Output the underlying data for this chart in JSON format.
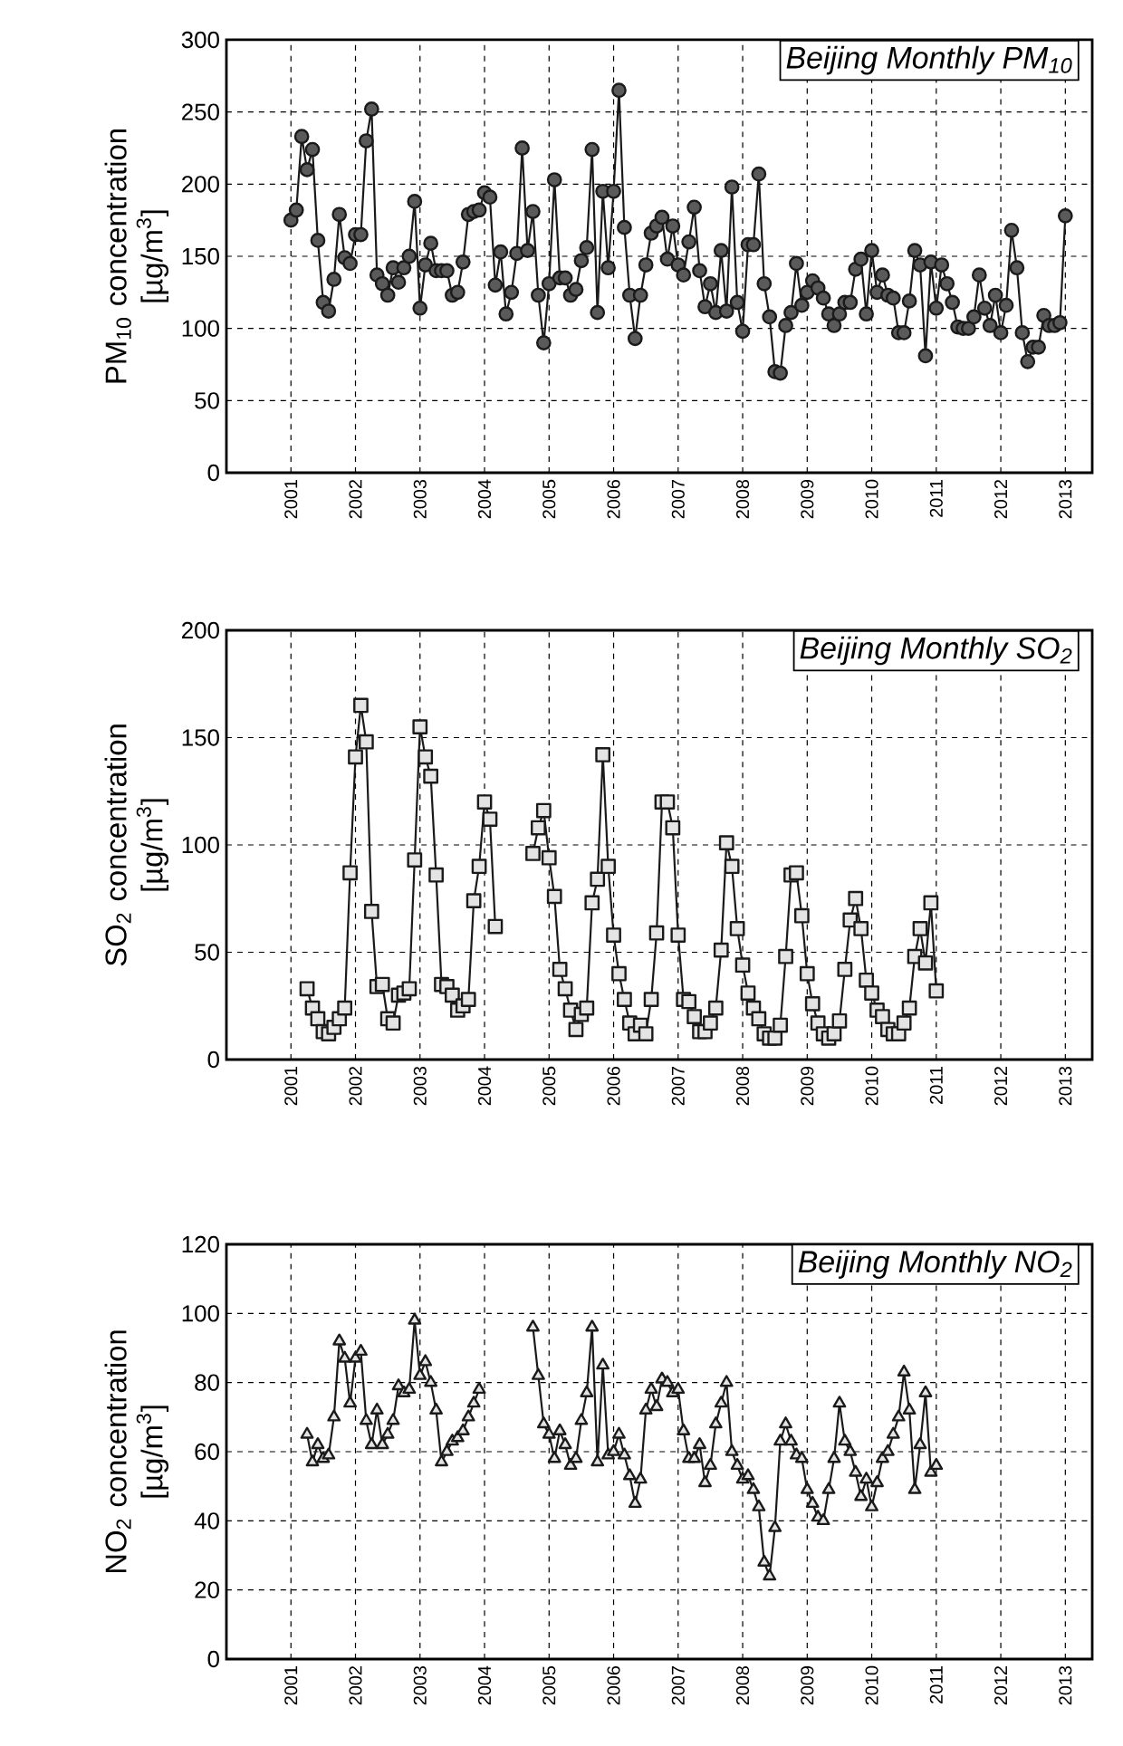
{
  "chart_data": [
    {
      "type": "line",
      "title": "Beijing Monthly PM$_{10}$",
      "ylabel": "PM$_{10}$ concentration [µg/m$^{3}$]",
      "marker": "circle",
      "grid": true,
      "xlim": [
        "2000-01",
        "2013-06"
      ],
      "ylim": [
        0,
        300
      ],
      "xticks": [
        "2001",
        "2002",
        "2003",
        "2004",
        "2005",
        "2006",
        "2007",
        "2008",
        "2009",
        "2010",
        "2011",
        "2012",
        "2013"
      ],
      "yticks": [
        0,
        50,
        100,
        150,
        200,
        250,
        300
      ],
      "x": [
        "2001-01",
        "2001-02",
        "2001-03",
        "2001-04",
        "2001-05",
        "2001-06",
        "2001-07",
        "2001-08",
        "2001-09",
        "2001-10",
        "2001-11",
        "2001-12",
        "2002-01",
        "2002-02",
        "2002-03",
        "2002-04",
        "2002-05",
        "2002-06",
        "2002-07",
        "2002-08",
        "2002-09",
        "2002-10",
        "2002-11",
        "2002-12",
        "2003-01",
        "2003-02",
        "2003-03",
        "2003-04",
        "2003-05",
        "2003-06",
        "2003-07",
        "2003-08",
        "2003-09",
        "2003-10",
        "2003-11",
        "2003-12",
        "2004-01",
        "2004-02",
        "2004-03",
        "2004-04",
        "2004-05",
        "2004-06",
        "2004-07",
        "2004-08",
        "2004-09",
        "2004-10",
        "2004-11",
        "2004-12",
        "2005-01",
        "2005-02",
        "2005-03",
        "2005-04",
        "2005-05",
        "2005-06",
        "2005-07",
        "2005-08",
        "2005-09",
        "2005-10",
        "2005-11",
        "2005-12",
        "2006-01",
        "2006-02",
        "2006-03",
        "2006-04",
        "2006-05",
        "2006-06",
        "2006-07",
        "2006-08",
        "2006-09",
        "2006-10",
        "2006-11",
        "2006-12",
        "2007-01",
        "2007-02",
        "2007-03",
        "2007-04",
        "2007-05",
        "2007-06",
        "2007-07",
        "2007-08",
        "2007-09",
        "2007-10",
        "2007-11",
        "2007-12",
        "2008-01",
        "2008-02",
        "2008-03",
        "2008-04",
        "2008-05",
        "2008-06",
        "2008-07",
        "2008-08",
        "2008-09",
        "2008-10",
        "2008-11",
        "2008-12",
        "2009-01",
        "2009-02",
        "2009-03",
        "2009-04",
        "2009-05",
        "2009-06",
        "2009-07",
        "2009-08",
        "2009-09",
        "2009-10",
        "2009-11",
        "2009-12",
        "2010-01",
        "2010-02",
        "2010-03",
        "2010-04",
        "2010-05",
        "2010-06",
        "2010-07",
        "2010-08",
        "2010-09",
        "2010-10",
        "2010-11",
        "2010-12",
        "2011-01",
        "2011-02",
        "2011-03",
        "2011-04",
        "2011-05",
        "2011-06",
        "2011-07",
        "2011-08",
        "2011-09",
        "2011-10",
        "2011-11",
        "2011-12",
        "2012-01",
        "2012-02",
        "2012-03",
        "2012-04",
        "2012-05",
        "2012-06",
        "2012-07",
        "2012-08",
        "2012-09",
        "2012-10",
        "2012-11",
        "2012-12",
        "2013-01"
      ],
      "series": [
        {
          "color": "#5a5a5a",
          "values": [
            175,
            182,
            233,
            210,
            224,
            161,
            118,
            112,
            134,
            179,
            149,
            145,
            165,
            165,
            230,
            252,
            137,
            131,
            123,
            142,
            132,
            142,
            150,
            188,
            114,
            144,
            159,
            140,
            140,
            140,
            123,
            125,
            146,
            179,
            181,
            182,
            194,
            191,
            130,
            153,
            110,
            125,
            152,
            225,
            154,
            181,
            123,
            90,
            131,
            203,
            135,
            135,
            123,
            127,
            147,
            156,
            224,
            111,
            195,
            142,
            195,
            265,
            170,
            123,
            93,
            123,
            144,
            166,
            171,
            177,
            148,
            171,
            144,
            137,
            160,
            184,
            140,
            115,
            131,
            111,
            154,
            112,
            198,
            118,
            98,
            158,
            158,
            207,
            131,
            108,
            70,
            69,
            102,
            111,
            145,
            116,
            125,
            133,
            128,
            121,
            110,
            102,
            110,
            118,
            118,
            141,
            148,
            110,
            154,
            125,
            137,
            123,
            121,
            97,
            97,
            119,
            154,
            144,
            81,
            146,
            114,
            144,
            131,
            118,
            101,
            100,
            100,
            108,
            137,
            114,
            102,
            123,
            97,
            116,
            168,
            142,
            97,
            77,
            87,
            87,
            109,
            102,
            102,
            104,
            178
          ]
        }
      ]
    },
    {
      "type": "line",
      "title": "Beijing Monthly SO$_{2}$",
      "ylabel": "SO$_{2}$ concentration [µg/m$^{3}$]",
      "marker": "square",
      "grid": true,
      "xlim": [
        "2000-01",
        "2013-06"
      ],
      "ylim": [
        0,
        200
      ],
      "xticks": [
        "2001",
        "2002",
        "2003",
        "2004",
        "2005",
        "2006",
        "2007",
        "2008",
        "2009",
        "2010",
        "2011",
        "2012",
        "2013"
      ],
      "yticks": [
        0,
        50,
        100,
        150,
        200
      ],
      "x": [
        "2001-04",
        "2001-05",
        "2001-06",
        "2001-07",
        "2001-08",
        "2001-09",
        "2001-10",
        "2001-11",
        "2001-12",
        "2002-01",
        "2002-02",
        "2002-03",
        "2002-04",
        "2002-05",
        "2002-06",
        "2002-07",
        "2002-08",
        "2002-09",
        "2002-10",
        "2002-11",
        "2002-12",
        "2003-01",
        "2003-02",
        "2003-03",
        "2003-04",
        "2003-05",
        "2003-06",
        "2003-07",
        "2003-08",
        "2003-09",
        "2003-10",
        "2003-11",
        "2003-12",
        "2004-01",
        "2004-02",
        "2004-03",
        "2004-04",
        "2004-05",
        "2004-06",
        "2004-07",
        "2004-08",
        "2004-09",
        "2004-10",
        "2004-11",
        "2004-12",
        "2005-01",
        "2005-02",
        "2005-03",
        "2005-04",
        "2005-05",
        "2005-06",
        "2005-07",
        "2005-08",
        "2005-09",
        "2005-10",
        "2005-11",
        "2005-12",
        "2006-01",
        "2006-02",
        "2006-03",
        "2006-04",
        "2006-05",
        "2006-06",
        "2006-07",
        "2006-08",
        "2006-09",
        "2006-10",
        "2006-11",
        "2006-12",
        "2007-01",
        "2007-02",
        "2007-03",
        "2007-04",
        "2007-05",
        "2007-06",
        "2007-07",
        "2007-08",
        "2007-09",
        "2007-10",
        "2007-11",
        "2007-12",
        "2008-01",
        "2008-02",
        "2008-03",
        "2008-04",
        "2008-05",
        "2008-06",
        "2008-07",
        "2008-08",
        "2008-09",
        "2008-10",
        "2008-11",
        "2008-12",
        "2009-01",
        "2009-02",
        "2009-03",
        "2009-04",
        "2009-05",
        "2009-06",
        "2009-07",
        "2009-08",
        "2009-09",
        "2009-10",
        "2009-11",
        "2009-12",
        "2010-01",
        "2010-02",
        "2010-03",
        "2010-04",
        "2010-05",
        "2010-06",
        "2010-07",
        "2010-08",
        "2010-09",
        "2010-10",
        "2010-11",
        "2010-12",
        "2011-01"
      ],
      "series": [
        {
          "color": "#e4e4e4",
          "values": [
            33,
            24,
            19,
            13,
            12,
            15,
            19,
            24,
            87,
            141,
            165,
            148,
            69,
            34,
            35,
            19,
            17,
            30,
            31,
            33,
            93,
            155,
            141,
            132,
            86,
            35,
            34,
            30,
            23,
            25,
            28,
            74,
            90,
            120,
            112,
            62,
            null,
            null,
            null,
            null,
            null,
            null,
            96,
            108,
            116,
            94,
            76,
            42,
            33,
            23,
            14,
            21,
            24,
            73,
            84,
            142,
            90,
            58,
            40,
            28,
            17,
            12,
            16,
            12,
            28,
            59,
            120,
            120,
            108,
            58,
            28,
            27,
            20,
            13,
            13,
            17,
            24,
            51,
            101,
            90,
            61,
            44,
            31,
            24,
            19,
            12,
            10,
            10,
            16,
            48,
            86,
            87,
            67,
            40,
            26,
            17,
            12,
            10,
            12,
            18,
            42,
            65,
            75,
            61,
            37,
            31,
            23,
            20,
            14,
            12,
            12,
            17,
            24,
            48,
            61,
            45,
            73,
            32
          ]
        }
      ]
    },
    {
      "type": "line",
      "title": "Beijing Monthly NO$_{2}$",
      "ylabel": "NO$_{2}$ concentration [µg/m$^{3}$]",
      "marker": "triangle",
      "grid": true,
      "xlim": [
        "2000-01",
        "2013-06"
      ],
      "ylim": [
        0,
        120
      ],
      "xticks": [
        "2001",
        "2002",
        "2003",
        "2004",
        "2005",
        "2006",
        "2007",
        "2008",
        "2009",
        "2010",
        "2011",
        "2012",
        "2013"
      ],
      "yticks": [
        0,
        20,
        40,
        60,
        80,
        100,
        120
      ],
      "x": [
        "2001-04",
        "2001-05",
        "2001-06",
        "2001-07",
        "2001-08",
        "2001-09",
        "2001-10",
        "2001-11",
        "2001-12",
        "2002-01",
        "2002-02",
        "2002-03",
        "2002-04",
        "2002-05",
        "2002-06",
        "2002-07",
        "2002-08",
        "2002-09",
        "2002-10",
        "2002-11",
        "2002-12",
        "2003-01",
        "2003-02",
        "2003-03",
        "2003-04",
        "2003-05",
        "2003-06",
        "2003-07",
        "2003-08",
        "2003-09",
        "2003-10",
        "2003-11",
        "2003-12",
        "2004-01",
        "2004-02",
        "2004-03",
        "2004-04",
        "2004-05",
        "2004-06",
        "2004-07",
        "2004-08",
        "2004-09",
        "2004-10",
        "2004-11",
        "2004-12",
        "2005-01",
        "2005-02",
        "2005-03",
        "2005-04",
        "2005-05",
        "2005-06",
        "2005-07",
        "2005-08",
        "2005-09",
        "2005-10",
        "2005-11",
        "2005-12",
        "2006-01",
        "2006-02",
        "2006-03",
        "2006-04",
        "2006-05",
        "2006-06",
        "2006-07",
        "2006-08",
        "2006-09",
        "2006-10",
        "2006-11",
        "2006-12",
        "2007-01",
        "2007-02",
        "2007-03",
        "2007-04",
        "2007-05",
        "2007-06",
        "2007-07",
        "2007-08",
        "2007-09",
        "2007-10",
        "2007-11",
        "2007-12",
        "2008-01",
        "2008-02",
        "2008-03",
        "2008-04",
        "2008-05",
        "2008-06",
        "2008-07",
        "2008-08",
        "2008-09",
        "2008-10",
        "2008-11",
        "2008-12",
        "2009-01",
        "2009-02",
        "2009-03",
        "2009-04",
        "2009-05",
        "2009-06",
        "2009-07",
        "2009-08",
        "2009-09",
        "2009-10",
        "2009-11",
        "2009-12",
        "2010-01",
        "2010-02",
        "2010-03",
        "2010-04",
        "2010-05",
        "2010-06",
        "2010-07",
        "2010-08",
        "2010-09",
        "2010-10",
        "2010-11",
        "2010-12",
        "2011-01"
      ],
      "series": [
        {
          "color": "#e4e4e4",
          "values": [
            65,
            57,
            62,
            58,
            59,
            70,
            92,
            87,
            74,
            87,
            89,
            69,
            62,
            72,
            62,
            65,
            69,
            79,
            77,
            78,
            98,
            82,
            86,
            80,
            72,
            57,
            60,
            63,
            64,
            66,
            70,
            74,
            78,
            null,
            null,
            null,
            null,
            null,
            null,
            null,
            null,
            null,
            96,
            82,
            68,
            65,
            58,
            66,
            62,
            56,
            58,
            69,
            77,
            96,
            57,
            85,
            59,
            60,
            65,
            59,
            53,
            45,
            52,
            72,
            78,
            73,
            81,
            80,
            77,
            78,
            66,
            58,
            58,
            62,
            51,
            56,
            68,
            74,
            80,
            60,
            56,
            52,
            53,
            49,
            44,
            28,
            24,
            38,
            63,
            68,
            63,
            59,
            58,
            49,
            45,
            41,
            40,
            49,
            58,
            74,
            63,
            60,
            54,
            47,
            52,
            44,
            51,
            58,
            60,
            65,
            70,
            83,
            72,
            49,
            62,
            77,
            54,
            56
          ]
        }
      ]
    }
  ]
}
